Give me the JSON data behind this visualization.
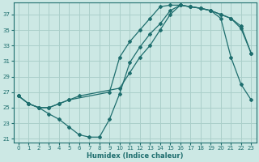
{
  "xlabel": "Humidex (Indice chaleur)",
  "bg_color": "#cce8e4",
  "grid_color": "#aacfca",
  "line_color": "#1e6e6e",
  "xlim": [
    -0.5,
    23.5
  ],
  "ylim": [
    20.5,
    38.5
  ],
  "xticks": [
    0,
    1,
    2,
    3,
    4,
    5,
    6,
    7,
    8,
    9,
    10,
    11,
    12,
    13,
    14,
    15,
    16,
    17,
    18,
    19,
    20,
    21,
    22,
    23
  ],
  "yticks": [
    21,
    23,
    25,
    27,
    29,
    31,
    33,
    35,
    37
  ],
  "lines": [
    {
      "x": [
        0,
        1,
        2,
        3,
        4,
        5,
        9,
        10,
        11,
        12,
        13,
        14,
        15,
        16,
        17,
        18,
        19,
        20,
        21,
        22,
        23
      ],
      "y": [
        26.5,
        25.5,
        25.0,
        25.0,
        25.5,
        26.0,
        27.0,
        31.5,
        33.5,
        35.0,
        36.5,
        38.0,
        38.2,
        38.2,
        38.0,
        37.8,
        37.5,
        37.0,
        36.5,
        35.5,
        32.0
      ]
    },
    {
      "x": [
        0,
        1,
        2,
        3,
        4,
        5,
        6,
        10,
        11,
        12,
        13,
        14,
        15,
        16,
        17,
        18,
        19,
        20,
        21,
        22,
        23
      ],
      "y": [
        26.5,
        25.5,
        25.0,
        25.0,
        25.5,
        26.0,
        26.5,
        27.5,
        29.5,
        31.5,
        33.0,
        35.0,
        37.0,
        38.2,
        38.0,
        37.8,
        37.5,
        36.5,
        31.5,
        28.0,
        26.0
      ]
    },
    {
      "x": [
        0,
        1,
        2,
        3,
        4,
        5,
        6,
        7,
        8,
        9,
        10,
        11,
        12,
        13,
        14,
        15,
        16,
        17,
        18,
        19,
        20,
        21,
        22,
        23
      ],
      "y": [
        26.5,
        25.5,
        25.0,
        24.2,
        23.5,
        22.5,
        21.5,
        21.2,
        21.2,
        23.5,
        26.8,
        30.8,
        32.8,
        34.5,
        35.8,
        37.5,
        38.2,
        38.0,
        37.8,
        37.5,
        37.0,
        36.5,
        35.2,
        32.0
      ]
    }
  ]
}
